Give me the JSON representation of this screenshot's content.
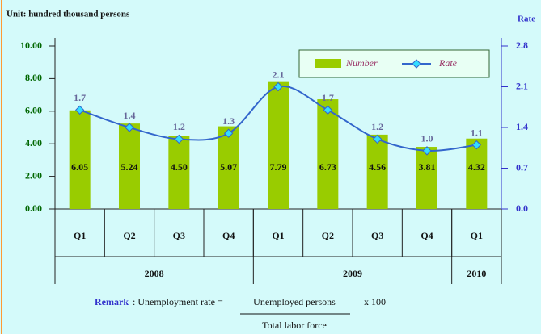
{
  "chart_data": {
    "type": "bar",
    "ylabel": "Unit: hundred thousand persons",
    "y2label": "Rate",
    "groups": [
      {
        "name": "2008",
        "categories": [
          "Q1",
          "Q2",
          "Q3",
          "Q4"
        ]
      },
      {
        "name": "2009",
        "categories": [
          "Q1",
          "Q2",
          "Q3",
          "Q4"
        ]
      },
      {
        "name": "2010",
        "categories": [
          "Q1"
        ]
      }
    ],
    "series": [
      {
        "name": "Number",
        "color": "#99cc00",
        "values": [
          6.05,
          5.24,
          4.5,
          5.07,
          7.79,
          6.73,
          4.56,
          3.81,
          4.32
        ],
        "value_labels": [
          "6.05",
          "5.24",
          "4.50",
          "5.07",
          "7.79",
          "6.73",
          "4.56",
          "3.81",
          "4.32"
        ]
      },
      {
        "name": "Rate",
        "type": "line",
        "axis": "y2",
        "color": "#3366cc",
        "values": [
          1.7,
          1.4,
          1.2,
          1.3,
          2.1,
          1.7,
          1.2,
          1.0,
          1.1
        ],
        "value_labels": [
          "1.7",
          "1.4",
          "1.2",
          "1.3",
          "2.1",
          "1.7",
          "1.2",
          "1.0",
          "1.1"
        ]
      }
    ],
    "ylim": [
      0,
      10
    ],
    "yticks": [
      {
        "value": 0,
        "label": "0.00"
      },
      {
        "value": 2,
        "label": "2.00"
      },
      {
        "value": 4,
        "label": "4.00"
      },
      {
        "value": 6,
        "label": "6.00"
      },
      {
        "value": 8,
        "label": "8.00"
      },
      {
        "value": 10,
        "label": "10.00"
      }
    ],
    "y2lim": [
      0,
      2.8
    ],
    "y2ticks": [
      {
        "value": 0,
        "label": "0.0"
      },
      0.7,
      1.4,
      2.1,
      2.8
    ],
    "legend": "top-right"
  },
  "remark": {
    "label": "Remark",
    "text": ":  Unemployment rate    =",
    "numerator": "Unemployed persons",
    "multiplier": "x   100",
    "denominator": "Total labor force"
  }
}
